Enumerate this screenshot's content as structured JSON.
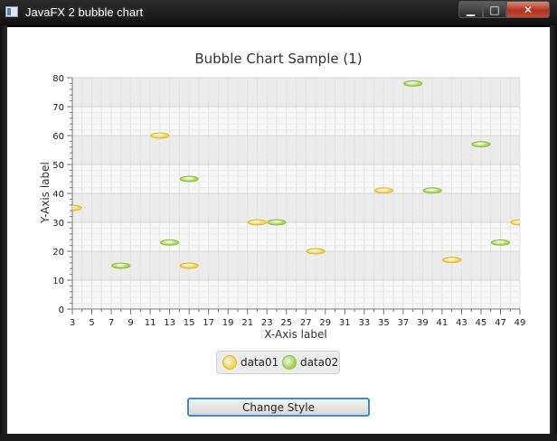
{
  "window": {
    "title": "JavaFX 2 bubble chart",
    "min_glyph": "▁",
    "max_glyph": "□",
    "close_glyph": "✕"
  },
  "legend": {
    "items": [
      {
        "label": "data01",
        "fill": "#f0d35a",
        "stroke": "#e0b820"
      },
      {
        "label": "data02",
        "fill": "#a8d55a",
        "stroke": "#8cc03a"
      }
    ]
  },
  "button": {
    "label": "Change Style"
  },
  "chart_data": {
    "type": "scatter",
    "title": "Bubble Chart Sample (1)",
    "xlabel": "X-Axis label",
    "ylabel": "Y-Axis label",
    "xlim": [
      3,
      49
    ],
    "ylim": [
      0,
      80
    ],
    "xticks": [
      3,
      5,
      7,
      9,
      11,
      13,
      15,
      17,
      19,
      21,
      23,
      25,
      27,
      29,
      31,
      33,
      35,
      37,
      39,
      41,
      43,
      45,
      47,
      49
    ],
    "yticks": [
      0,
      10,
      20,
      30,
      40,
      50,
      60,
      70,
      80
    ],
    "grid": true,
    "legend_position": "bottom",
    "series": [
      {
        "name": "data01",
        "color": "#f0d35a",
        "stroke": "#e0b820",
        "points": [
          [
            3,
            35
          ],
          [
            12,
            60
          ],
          [
            15,
            15
          ],
          [
            22,
            30
          ],
          [
            28,
            20
          ],
          [
            35,
            41
          ],
          [
            42,
            17
          ],
          [
            49,
            30
          ]
        ]
      },
      {
        "name": "data02",
        "color": "#a8d55a",
        "stroke": "#8cc03a",
        "points": [
          [
            8,
            15
          ],
          [
            13,
            23
          ],
          [
            15,
            45
          ],
          [
            24,
            30
          ],
          [
            38,
            78
          ],
          [
            40,
            41
          ],
          [
            45,
            57
          ],
          [
            47,
            23
          ]
        ]
      }
    ]
  }
}
